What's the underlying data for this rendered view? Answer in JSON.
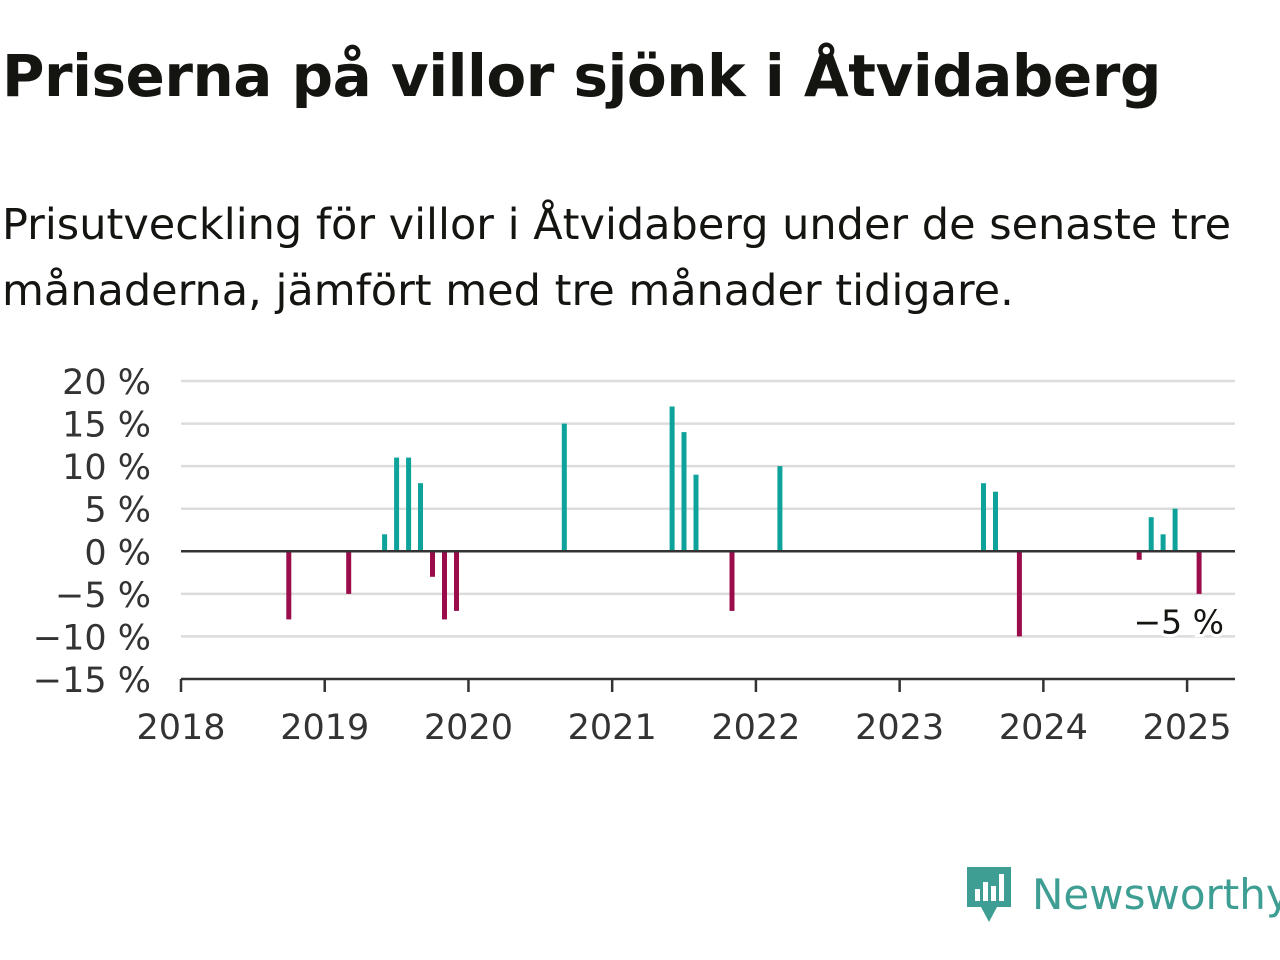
{
  "title": "Priserna på villor sjönk i Åtvidaberg",
  "subtitle": "Prisutveckling för villor i Åtvidaberg under de senaste tre månaderna, jämfört med tre månader tidigare.",
  "brand": {
    "name": "Newsworthy",
    "icon": "newsworthy-logo-icon",
    "color": "#3e9e93"
  },
  "colors": {
    "positive": "#0da39a",
    "negative": "#9b0d4a",
    "grid": "#dcdcdc",
    "zero_line": "#333333",
    "text": "#333333"
  },
  "chart_data": {
    "type": "bar",
    "title": "Priserna på villor sjönk i Åtvidaberg",
    "xlabel": "",
    "ylabel": "",
    "y_unit": "%",
    "ylim": [
      -15,
      20
    ],
    "yticks": [
      20,
      15,
      10,
      5,
      0,
      -5,
      -10,
      -15
    ],
    "ytick_labels": [
      "20 %",
      "15 %",
      "10 %",
      "5 %",
      "0 %",
      "−5 %",
      "−10 %",
      "−15 %"
    ],
    "xlim": [
      "2018-01",
      "2025-05"
    ],
    "xticks": [
      "2018",
      "2019",
      "2020",
      "2021",
      "2022",
      "2023",
      "2024",
      "2025"
    ],
    "grid": true,
    "legend": "none",
    "annotation": {
      "x": "2025-02",
      "y": -5,
      "label": "−5 %"
    },
    "x": [
      "2018-10",
      "2019-03",
      "2019-06",
      "2019-07",
      "2019-08",
      "2019-09",
      "2019-10",
      "2019-11",
      "2019-12",
      "2020-09",
      "2021-06",
      "2021-07",
      "2021-08",
      "2021-11",
      "2022-03",
      "2023-08",
      "2023-09",
      "2023-11",
      "2024-09",
      "2024-10",
      "2024-11",
      "2024-12",
      "2025-02"
    ],
    "values": [
      -8,
      -5,
      2,
      11,
      11,
      8,
      -3,
      -8,
      -7,
      15,
      17,
      14,
      9,
      -7,
      10,
      8,
      7,
      -10,
      -1,
      4,
      2,
      5,
      -5
    ]
  }
}
